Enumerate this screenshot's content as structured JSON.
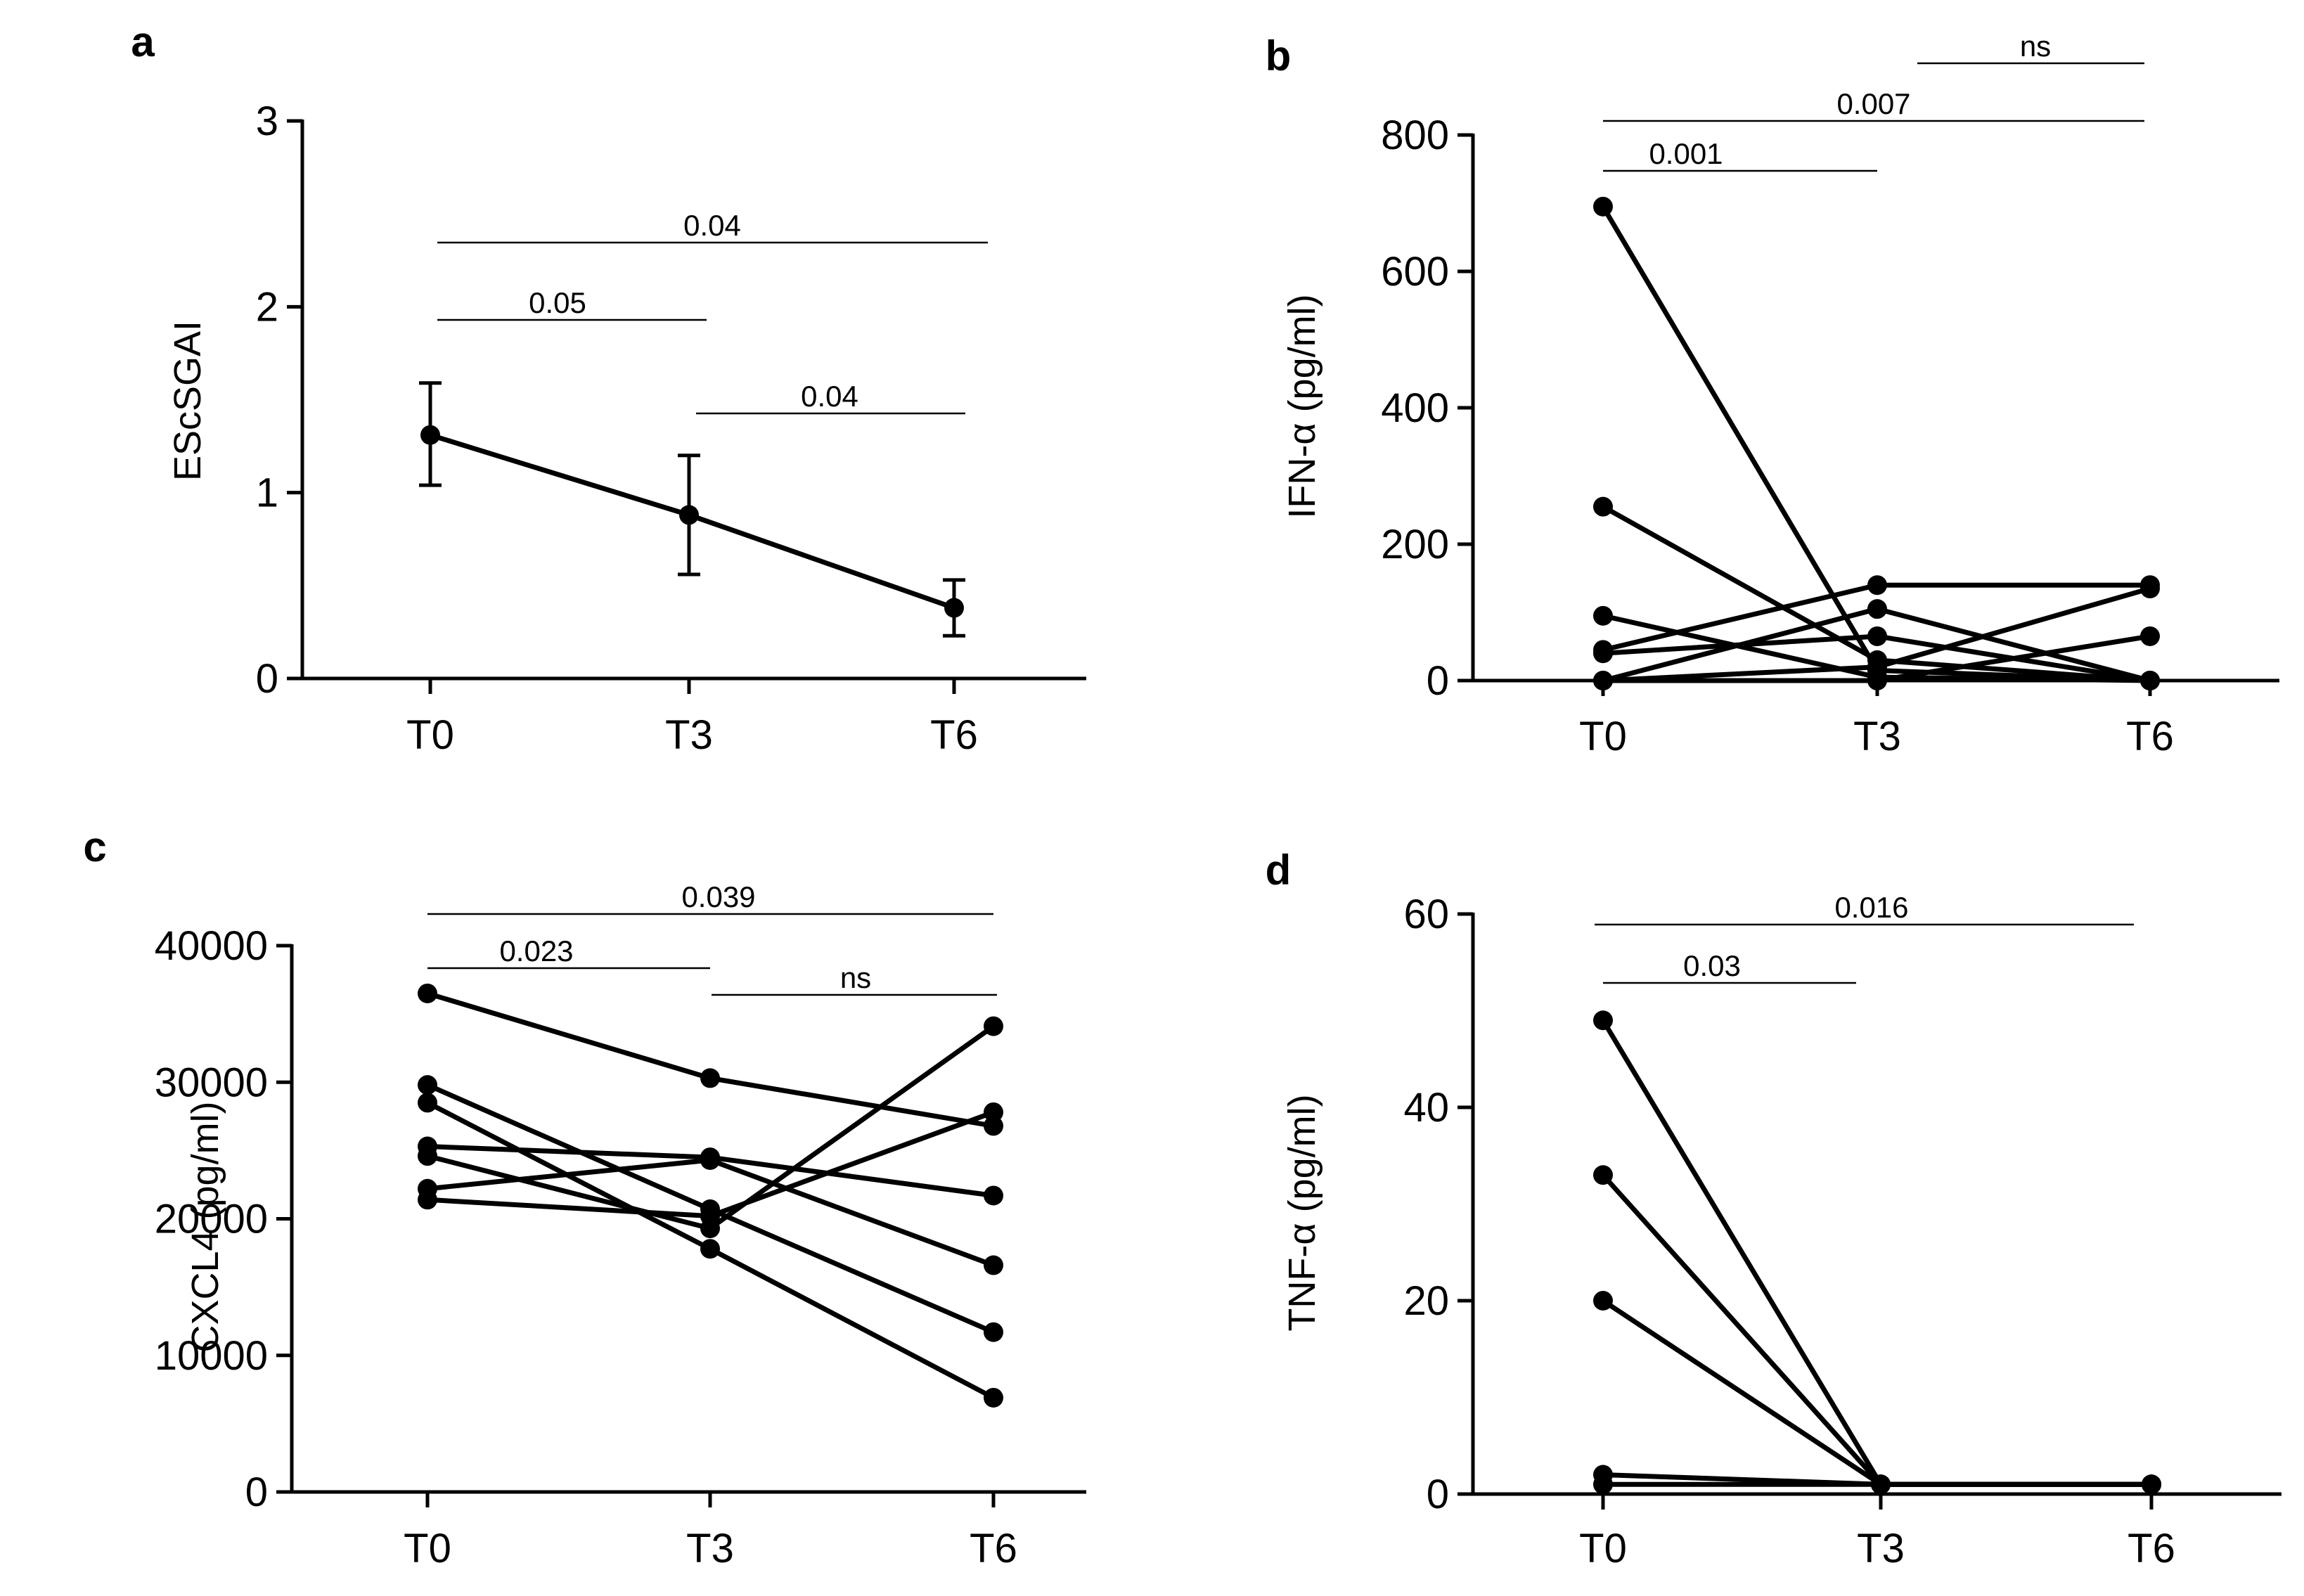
{
  "chart_data": [
    {
      "panel": "a",
      "type": "line",
      "categories": [
        "T0",
        "T3",
        "T6"
      ],
      "ylabel": "EScSGAI",
      "ylim": [
        0,
        3
      ],
      "yticks": [
        0,
        1,
        2,
        3
      ],
      "series": [
        {
          "values": [
            1.31,
            0.88,
            0.38
          ],
          "error": [
            [
              1.04,
              1.59
            ],
            [
              0.56,
              1.2
            ],
            [
              0.23,
              0.53
            ]
          ]
        }
      ],
      "significance": [
        {
          "from": "T0",
          "to": "T3",
          "label": "0.05"
        },
        {
          "from": "T0",
          "to": "T6",
          "label": "0.04"
        },
        {
          "from": "T3",
          "to": "T6",
          "label": "0.04"
        }
      ]
    },
    {
      "panel": "b",
      "type": "line",
      "categories": [
        "T0",
        "T3",
        "T6"
      ],
      "ylabel": "IFN-α (pg/ml)",
      "ylim": [
        0,
        800
      ],
      "yticks": [
        0,
        200,
        400,
        600,
        800
      ],
      "series": [
        {
          "values": [
            695,
            15,
            0
          ]
        },
        {
          "values": [
            255,
            30,
            0
          ]
        },
        {
          "values": [
            95,
            5,
            0
          ]
        },
        {
          "values": [
            45,
            140,
            140
          ]
        },
        {
          "values": [
            40,
            65,
            0
          ]
        },
        {
          "values": [
            0,
            105,
            0
          ]
        },
        {
          "values": [
            0,
            0,
            65
          ]
        },
        {
          "values": [
            0,
            20,
            135
          ]
        }
      ],
      "significance": [
        {
          "from": "T0",
          "to": "T3",
          "label": "0.001"
        },
        {
          "from": "T0",
          "to": "T6",
          "label": "0.007"
        },
        {
          "from": "T3",
          "to": "T6",
          "label": "ns"
        }
      ]
    },
    {
      "panel": "c",
      "type": "line",
      "categories": [
        "T0",
        "T3",
        "T6"
      ],
      "ylabel": "CXCL4 (pg/ml)",
      "ylim": [
        0,
        40000
      ],
      "yticks": [
        0,
        10000,
        20000,
        30000,
        40000
      ],
      "series": [
        {
          "values": [
            36500,
            30300,
            26800
          ]
        },
        {
          "values": [
            29800,
            20700,
            11700
          ]
        },
        {
          "values": [
            28500,
            17800,
            6900
          ]
        },
        {
          "values": [
            25300,
            24500,
            21700
          ]
        },
        {
          "values": [
            24600,
            19300,
            34100
          ]
        },
        {
          "values": [
            22200,
            24300,
            16600
          ]
        },
        {
          "values": [
            21400,
            20200,
            27800
          ]
        }
      ],
      "significance": [
        {
          "from": "T0",
          "to": "T3",
          "label": "0.023"
        },
        {
          "from": "T0",
          "to": "T6",
          "label": "0.039"
        },
        {
          "from": "T3",
          "to": "T6",
          "label": "ns"
        }
      ]
    },
    {
      "panel": "d",
      "type": "line",
      "categories": [
        "T0",
        "T3",
        "T6"
      ],
      "ylabel": "TNF-α (pg/ml)",
      "ylim": [
        0,
        60
      ],
      "yticks": [
        0,
        20,
        40,
        60
      ],
      "series": [
        {
          "values": [
            49,
            1,
            1
          ]
        },
        {
          "values": [
            33,
            1,
            1
          ]
        },
        {
          "values": [
            20,
            1,
            1
          ]
        },
        {
          "values": [
            2,
            1,
            1
          ]
        },
        {
          "values": [
            1,
            1,
            1
          ]
        }
      ],
      "significance": [
        {
          "from": "T0",
          "to": "T3",
          "label": "0.03"
        },
        {
          "from": "T0",
          "to": "T6",
          "label": "0.016"
        }
      ]
    }
  ]
}
